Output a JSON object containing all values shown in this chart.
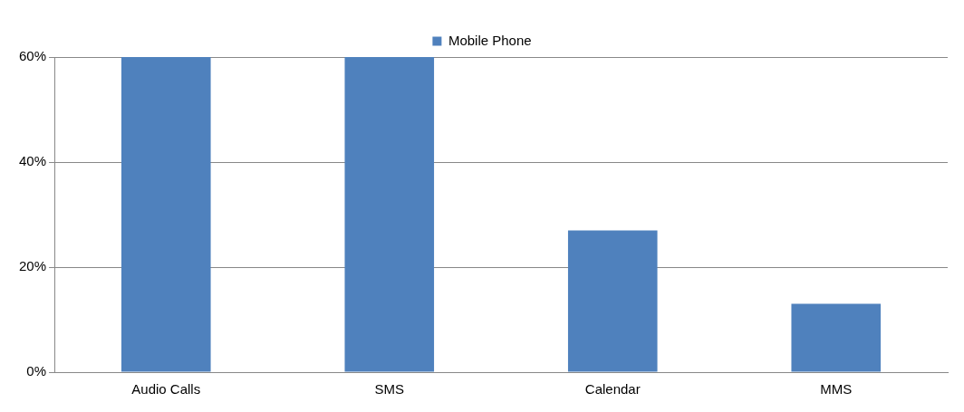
{
  "chart_data": {
    "type": "bar",
    "categories": [
      "Audio Calls",
      "SMS",
      "Calendar",
      "MMS"
    ],
    "series": [
      {
        "name": "Mobile Phone",
        "color": "#4f81bd",
        "values": [
          60,
          60,
          27,
          13
        ]
      }
    ],
    "ylim": [
      0,
      60
    ],
    "yticks": [
      {
        "value": 0,
        "label": "0%"
      },
      {
        "value": 20,
        "label": "20%"
      },
      {
        "value": 40,
        "label": "40%"
      },
      {
        "value": 60,
        "label": "60%"
      }
    ],
    "grid": "y",
    "legend": "top"
  }
}
